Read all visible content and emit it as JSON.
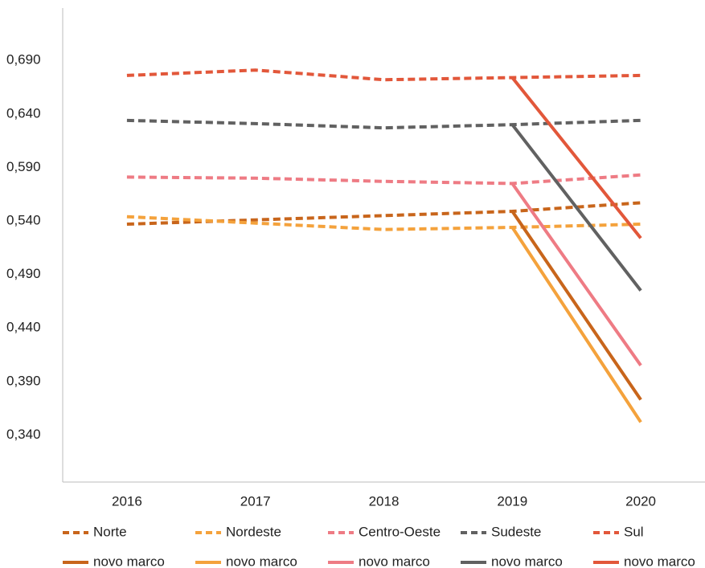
{
  "chart_data": {
    "type": "line",
    "categories": [
      "2016",
      "2017",
      "2018",
      "2019",
      "2020"
    ],
    "ylim": [
      0.296,
      0.739
    ],
    "yticks": [
      {
        "value": 0.34,
        "label": "0,340"
      },
      {
        "value": 0.39,
        "label": "0,390"
      },
      {
        "value": 0.44,
        "label": "0,440"
      },
      {
        "value": 0.49,
        "label": "0,490"
      },
      {
        "value": 0.54,
        "label": "0,540"
      },
      {
        "value": 0.59,
        "label": "0,590"
      },
      {
        "value": 0.64,
        "label": "0,640"
      },
      {
        "value": 0.69,
        "label": "0,690"
      }
    ],
    "grid": false,
    "legend": "bottom",
    "series": [
      {
        "name": "Norte",
        "color": "#c8651b",
        "dashed": true,
        "values": [
          0.537,
          0.541,
          0.545,
          0.549,
          0.557
        ]
      },
      {
        "name": "Nordeste",
        "color": "#f4a23c",
        "dashed": true,
        "values": [
          0.544,
          0.538,
          0.532,
          0.534,
          0.537
        ]
      },
      {
        "name": "Centro-Oeste",
        "color": "#ee7b84",
        "dashed": true,
        "values": [
          0.581,
          0.58,
          0.577,
          0.575,
          0.583
        ]
      },
      {
        "name": "Sudeste",
        "color": "#616161",
        "dashed": true,
        "values": [
          0.634,
          0.631,
          0.627,
          0.63,
          0.634
        ]
      },
      {
        "name": "Sul",
        "color": "#e2573a",
        "dashed": true,
        "values": [
          0.676,
          0.681,
          0.672,
          0.674,
          0.676
        ]
      },
      {
        "name": "novo marco",
        "color": "#c8651b",
        "dashed": false,
        "values": [
          null,
          null,
          null,
          0.549,
          0.373
        ]
      },
      {
        "name": "novo marco",
        "color": "#f4a23c",
        "dashed": false,
        "values": [
          null,
          null,
          null,
          0.534,
          0.352
        ]
      },
      {
        "name": "novo marco",
        "color": "#ee7b84",
        "dashed": false,
        "values": [
          null,
          null,
          null,
          0.575,
          0.405
        ]
      },
      {
        "name": "novo marco",
        "color": "#616161",
        "dashed": false,
        "values": [
          null,
          null,
          null,
          0.63,
          0.475
        ]
      },
      {
        "name": "novo marco",
        "color": "#e2573a",
        "dashed": false,
        "values": [
          null,
          null,
          null,
          0.674,
          0.524
        ]
      }
    ]
  }
}
